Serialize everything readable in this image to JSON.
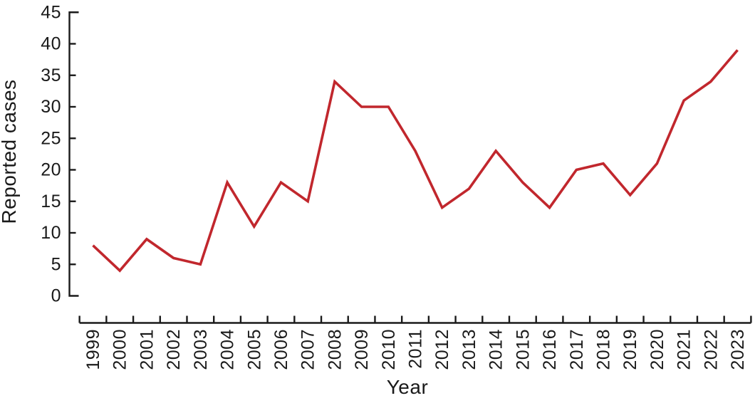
{
  "page": {
    "background": "#ffffff",
    "text_color": "#1a1a1a"
  },
  "chart_data": {
    "type": "line",
    "title": "",
    "xlabel": "Year",
    "ylabel": "Reported cases",
    "categories": [
      "1999",
      "2000",
      "2001",
      "2002",
      "2003",
      "2004",
      "2005",
      "2006",
      "2007",
      "2008",
      "2009",
      "2010",
      "2011",
      "2012",
      "2013",
      "2014",
      "2015",
      "2016",
      "2017",
      "2018",
      "2019",
      "2020",
      "2021",
      "2022",
      "2023"
    ],
    "values": [
      8,
      4,
      9,
      6,
      5,
      18,
      11,
      18,
      15,
      34,
      30,
      30,
      23,
      14,
      17,
      23,
      18,
      14,
      20,
      21,
      16,
      21,
      31,
      34,
      39
    ],
    "series": [
      {
        "name": "Reported cases",
        "values": [
          8,
          4,
          9,
          6,
          5,
          18,
          11,
          18,
          15,
          34,
          30,
          30,
          23,
          14,
          17,
          23,
          18,
          14,
          20,
          21,
          16,
          21,
          31,
          34,
          39
        ]
      }
    ],
    "ylim": [
      0,
      45
    ],
    "ytick_step": 5,
    "yticks": [
      0,
      5,
      10,
      15,
      20,
      25,
      30,
      35,
      40,
      45
    ],
    "grid": "off",
    "legend": "none",
    "line_color": "#c1272d",
    "axis_color": "#1a1a1a"
  }
}
